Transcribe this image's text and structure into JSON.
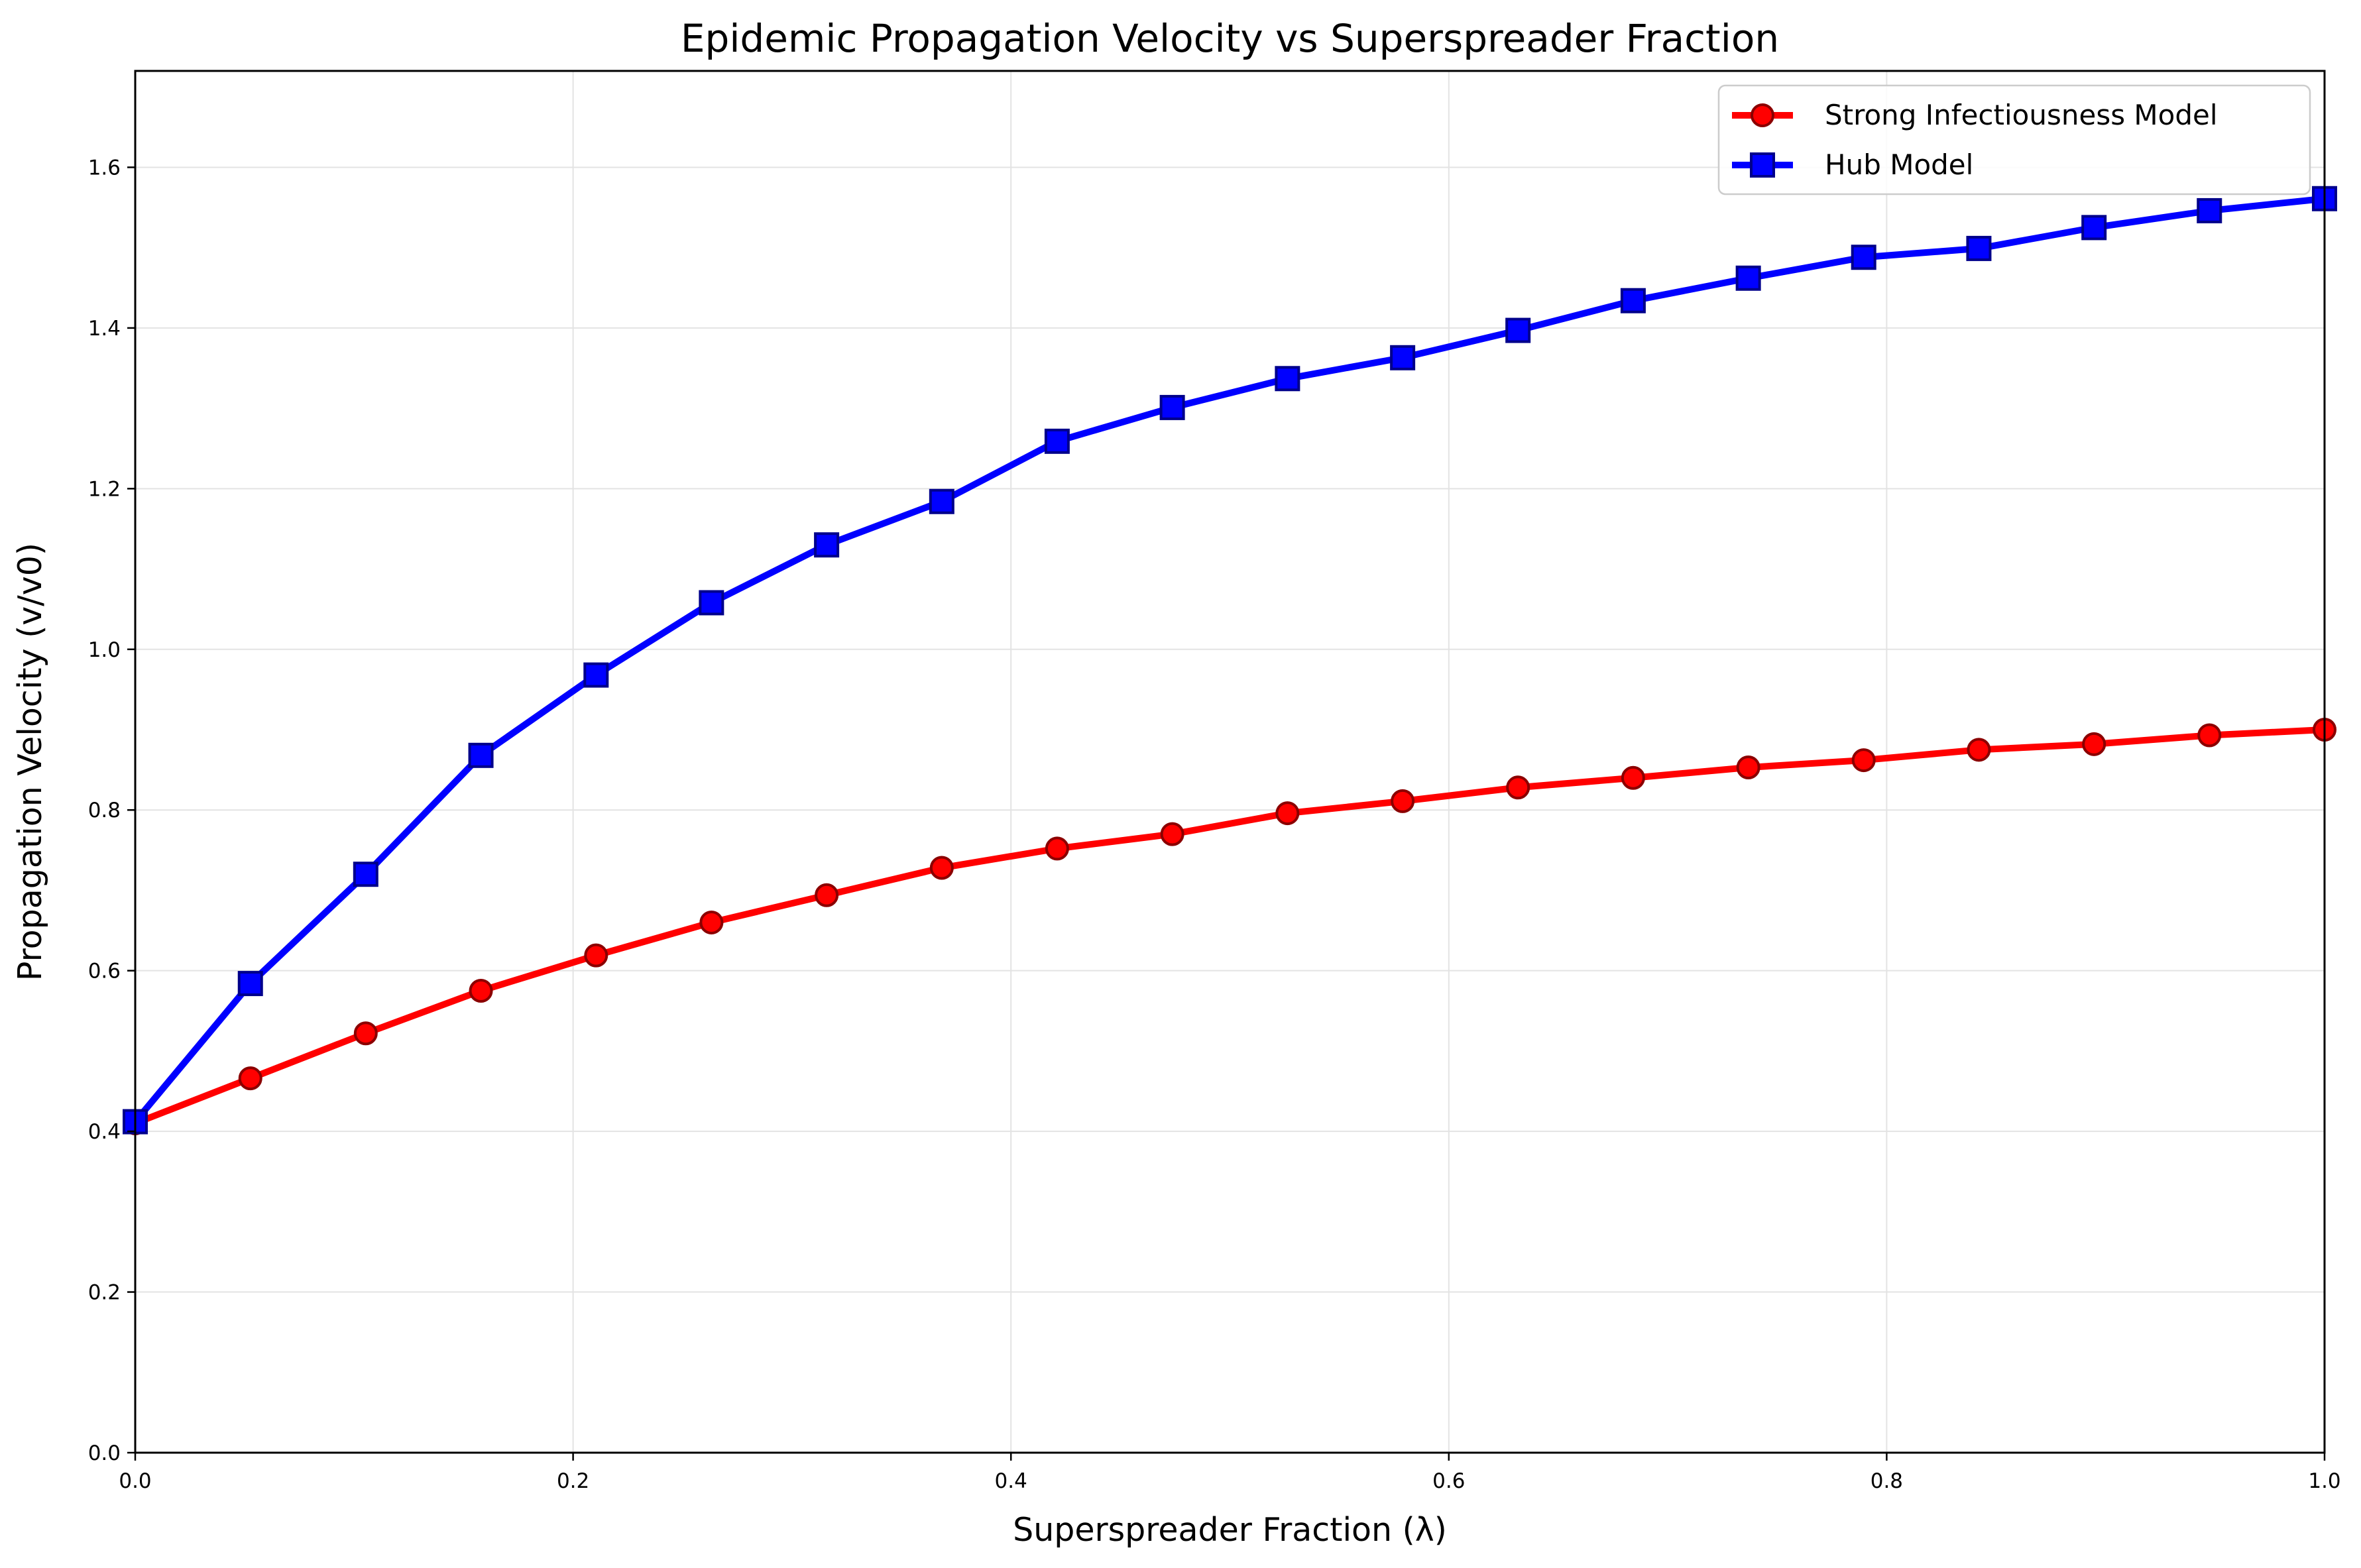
{
  "chart_data": {
    "type": "line",
    "title": "Epidemic Propagation Velocity vs Superspreader Fraction",
    "xlabel": "Superspreader Fraction (λ)",
    "ylabel": "Propagation Velocity (v/v0)",
    "xlim": [
      0,
      1.0
    ],
    "ylim": [
      0,
      1.72
    ],
    "xticks": [
      "0.0",
      "0.2",
      "0.4",
      "0.6",
      "0.8",
      "1.0"
    ],
    "yticks": [
      "0.0",
      "0.2",
      "0.4",
      "0.6",
      "0.8",
      "1.0",
      "1.2",
      "1.4",
      "1.6"
    ],
    "grid": true,
    "legend_position": "top-right",
    "x": [
      0.0,
      0.0526,
      0.1053,
      0.1579,
      0.2105,
      0.2632,
      0.3158,
      0.3684,
      0.4211,
      0.4737,
      0.5263,
      0.5789,
      0.6316,
      0.6842,
      0.7368,
      0.7895,
      0.8421,
      0.8947,
      0.9474,
      1.0
    ],
    "series": [
      {
        "name": "Strong Infectiousness Model",
        "color": "#ff0000",
        "edge_color": "#8b0000",
        "marker": "circle",
        "values": [
          0.41,
          0.466,
          0.522,
          0.575,
          0.619,
          0.66,
          0.694,
          0.728,
          0.752,
          0.77,
          0.796,
          0.811,
          0.828,
          0.84,
          0.853,
          0.862,
          0.875,
          0.882,
          0.893,
          0.9
        ]
      },
      {
        "name": "Hub Model",
        "color": "#0000ff",
        "edge_color": "#00008b",
        "marker": "square",
        "values": [
          0.412,
          0.584,
          0.72,
          0.868,
          0.968,
          1.058,
          1.13,
          1.184,
          1.259,
          1.301,
          1.337,
          1.363,
          1.397,
          1.434,
          1.462,
          1.488,
          1.499,
          1.525,
          1.546,
          1.561
        ]
      }
    ]
  }
}
